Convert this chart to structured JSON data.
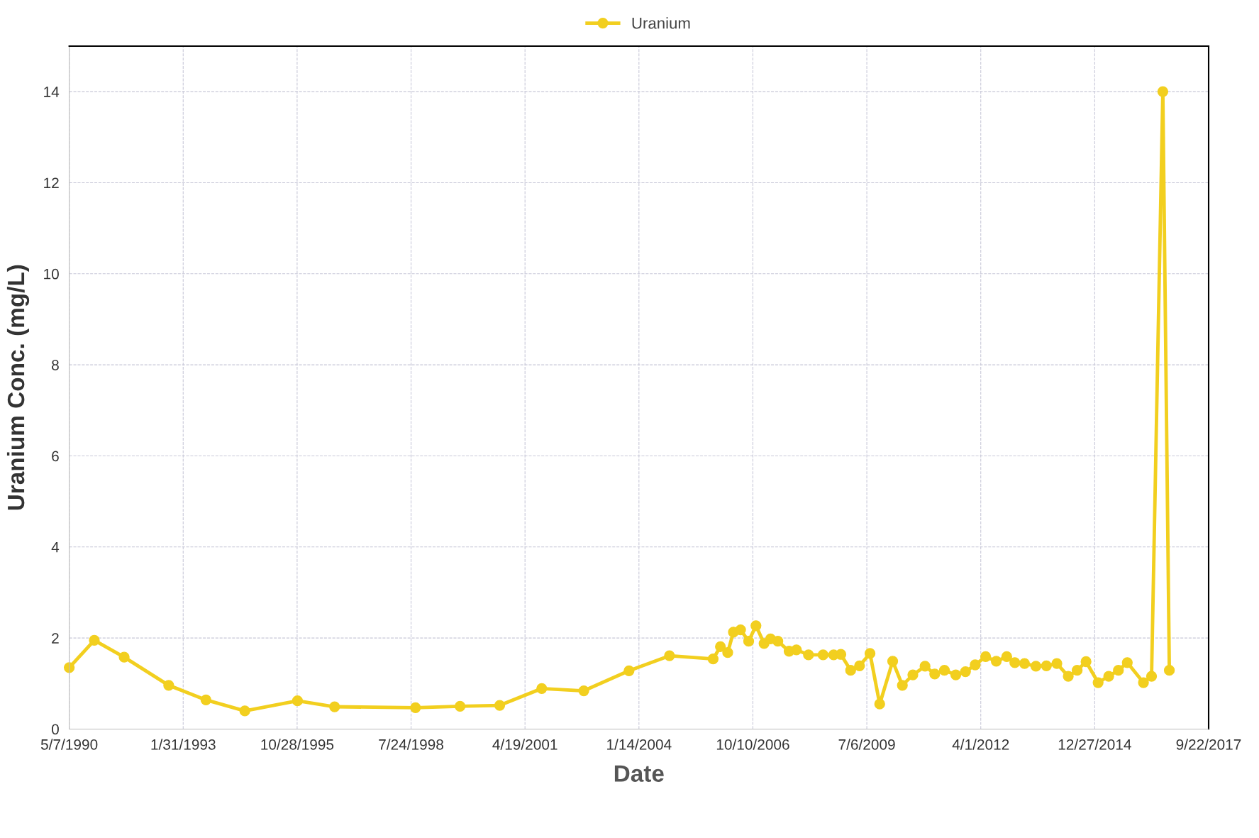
{
  "chart_data": {
    "type": "line",
    "xlabel": "Date",
    "ylabel": "Uranium Conc. (mg/L)",
    "x": [
      "1990-05-07",
      "1990-12-13",
      "1991-09-01",
      "1992-09-26",
      "1993-08-19",
      "1994-07-26",
      "1995-10-31",
      "1996-09-21",
      "1998-09-01",
      "1999-09-27",
      "2000-09-09",
      "2001-09-13",
      "2002-09-17",
      "2003-10-19",
      "2004-10-08",
      "2005-10-26",
      "2005-12-29",
      "2006-03-03",
      "2006-04-22",
      "2006-06-24",
      "2006-09-03",
      "2006-11-06",
      "2007-01-16",
      "2007-03-14",
      "2007-05-17",
      "2007-08-24",
      "2007-10-27",
      "2008-02-10",
      "2008-06-17",
      "2008-09-18",
      "2008-11-20",
      "2009-02-14",
      "2009-05-03",
      "2009-08-03",
      "2009-10-27",
      "2010-02-18",
      "2010-05-14",
      "2010-08-14",
      "2010-11-29",
      "2011-02-22",
      "2011-05-18",
      "2011-08-26",
      "2011-11-19",
      "2012-02-12",
      "2012-05-14",
      "2012-08-15",
      "2012-11-15",
      "2013-01-25",
      "2013-04-20",
      "2013-07-29",
      "2013-10-29",
      "2014-01-29",
      "2014-05-09",
      "2014-07-26",
      "2014-10-12",
      "2015-01-26",
      "2015-04-29",
      "2015-07-23",
      "2015-10-09",
      "2016-02-28",
      "2016-05-09",
      "2016-08-16",
      "2016-10-12"
    ],
    "series": [
      {
        "name": "Uranium",
        "color": "#f2cf1f",
        "values": [
          1.35,
          1.95,
          1.58,
          0.96,
          0.64,
          0.4,
          0.62,
          0.49,
          0.47,
          0.5,
          0.52,
          0.89,
          0.84,
          1.28,
          1.61,
          1.54,
          1.81,
          1.68,
          2.13,
          2.18,
          1.93,
          2.27,
          1.88,
          1.98,
          1.93,
          1.71,
          1.74,
          1.63,
          1.63,
          1.63,
          1.64,
          1.29,
          1.39,
          1.66,
          0.55,
          1.49,
          0.96,
          1.19,
          1.38,
          1.21,
          1.29,
          1.19,
          1.26,
          1.41,
          1.59,
          1.49,
          1.59,
          1.46,
          1.44,
          1.38,
          1.39,
          1.44,
          1.16,
          1.29,
          1.48,
          1.02,
          1.16,
          1.29,
          1.46,
          1.02,
          1.16,
          14.0,
          1.29
        ]
      }
    ],
    "xlim": [
      "1990-05-07",
      "2017-09-22"
    ],
    "xticks": [
      {
        "value": "1990-05-07",
        "label": "5/7/1990"
      },
      {
        "value": "1993-01-31",
        "label": "1/31/1993"
      },
      {
        "value": "1995-10-28",
        "label": "10/28/1995"
      },
      {
        "value": "1998-07-24",
        "label": "7/24/1998"
      },
      {
        "value": "2001-04-19",
        "label": "4/19/2001"
      },
      {
        "value": "2004-01-14",
        "label": "1/14/2004"
      },
      {
        "value": "2006-10-10",
        "label": "10/10/2006"
      },
      {
        "value": "2009-07-06",
        "label": "7/6/2009"
      },
      {
        "value": "2012-04-01",
        "label": "4/1/2012"
      },
      {
        "value": "2014-12-27",
        "label": "12/27/2014"
      },
      {
        "value": "2017-09-22",
        "label": "9/22/2017"
      }
    ],
    "ylim": [
      0,
      15
    ],
    "yticks": [
      0,
      2,
      4,
      6,
      8,
      10,
      12,
      14
    ],
    "grid": true,
    "legend": "top",
    "marker": "circle",
    "line_style": "solid"
  }
}
